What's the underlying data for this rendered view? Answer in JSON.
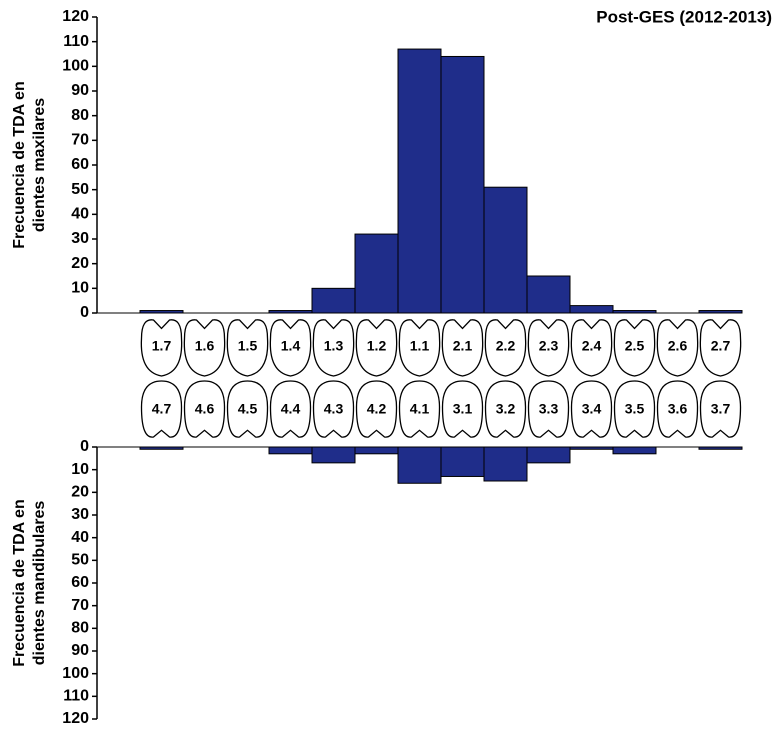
{
  "chart_data": [
    {
      "type": "bar",
      "title": "Post-GES (2012-2013)",
      "ylabel": [
        "Frecuencia de TDA en",
        "dientes maxilares"
      ],
      "categories": [
        "1.7",
        "1.6",
        "1.5",
        "1.4",
        "1.3",
        "1.2",
        "1.1",
        "2.1",
        "2.2",
        "2.3",
        "2.4",
        "2.5",
        "2.6",
        "2.7"
      ],
      "values": [
        1,
        0,
        0,
        1,
        10,
        32,
        107,
        104,
        51,
        15,
        3,
        1,
        0,
        1
      ],
      "color": "#1f2d8a",
      "ylim": [
        0,
        120
      ],
      "yticks": [
        0,
        10,
        20,
        30,
        40,
        50,
        60,
        70,
        80,
        90,
        100,
        110,
        120
      ]
    },
    {
      "type": "bar",
      "ylabel": [
        "Frecuencia de TDA en",
        "dientes mandibulares"
      ],
      "categories": [
        "4.7",
        "4.6",
        "4.5",
        "4.4",
        "4.3",
        "4.2",
        "4.1",
        "3.1",
        "3.2",
        "3.3",
        "3.4",
        "3.5",
        "3.6",
        "3.7"
      ],
      "values": [
        1,
        0,
        0,
        3,
        7,
        3,
        16,
        13,
        15,
        7,
        1,
        3,
        0,
        1
      ],
      "color": "#1f2d8a",
      "ylim": [
        120,
        0
      ],
      "yticks": [
        0,
        10,
        20,
        30,
        40,
        50,
        60,
        70,
        80,
        90,
        100,
        110,
        120
      ]
    }
  ]
}
